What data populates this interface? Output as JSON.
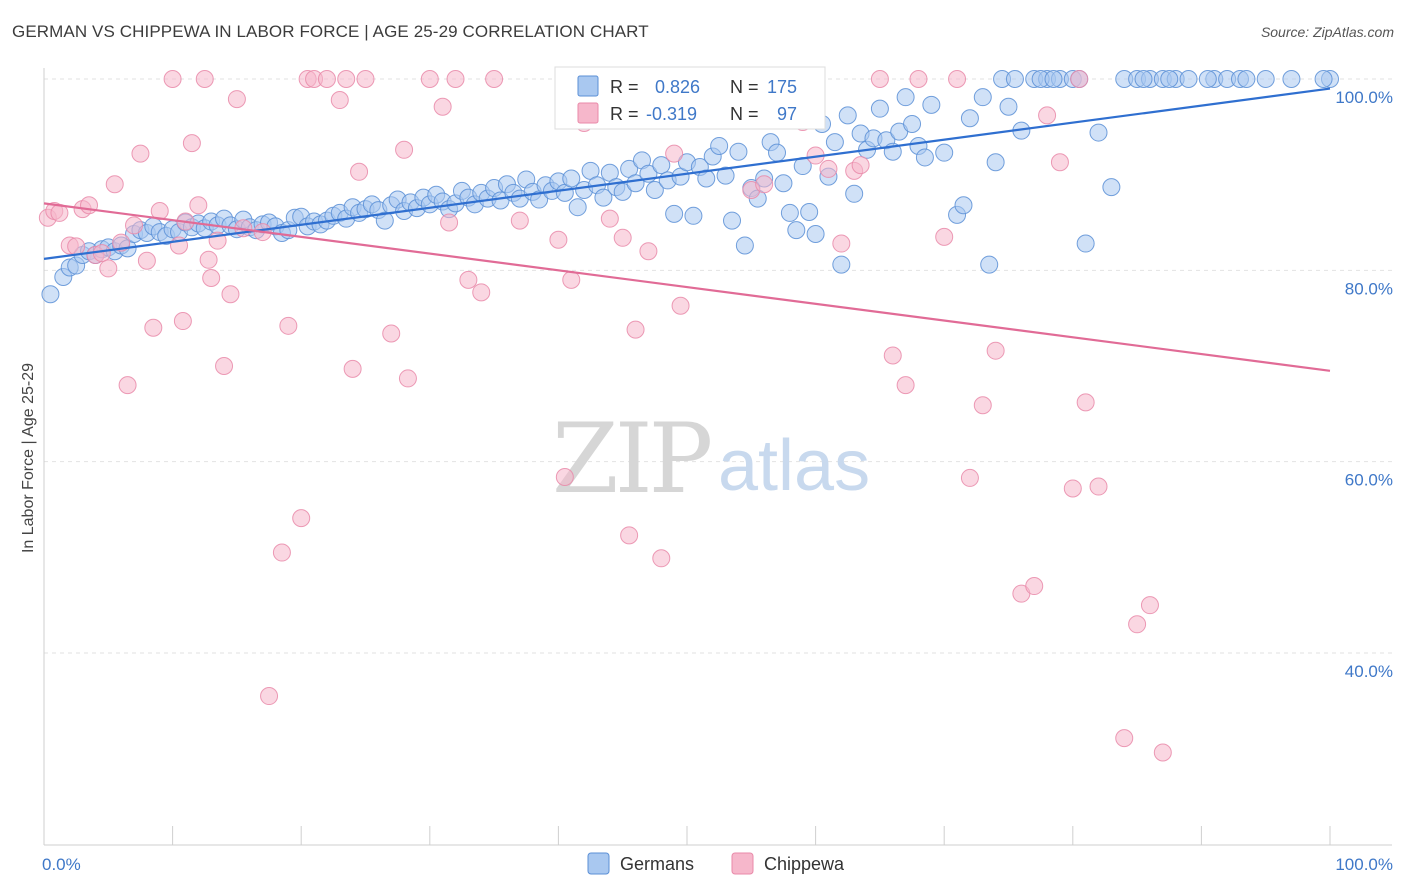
{
  "title": "GERMAN VS CHIPPEWA IN LABOR FORCE | AGE 25-29 CORRELATION CHART",
  "source": "Source: ZipAtlas.com",
  "watermark": {
    "zip": "ZIP",
    "atlas": "atlas"
  },
  "legend": {
    "r_label": "R =",
    "n_label": "N =",
    "rows": [
      {
        "r": "0.826",
        "n": "175",
        "color": "#a9c8f0"
      },
      {
        "r": "-0.319",
        "n": "97",
        "color": "#f6b7cb"
      }
    ]
  },
  "chart_data": {
    "type": "scatter",
    "title": "GERMAN VS CHIPPEWA IN LABOR FORCE | AGE 25-29 CORRELATION CHART",
    "xlabel": "",
    "ylabel": "In Labor Force | Age 25-29",
    "xlim": [
      0,
      100
    ],
    "ylim": [
      20,
      102
    ],
    "x_tick_labels": [
      "0.0%",
      "100.0%"
    ],
    "y_ticks": [
      40,
      60,
      80,
      100
    ],
    "y_tick_labels": [
      "40.0%",
      "60.0%",
      "80.0%",
      "100.0%"
    ],
    "grid": true,
    "legend_position": "top-center",
    "series": [
      {
        "name": "Germans",
        "color": "#a9c8f0",
        "stroke": "#5b8fd6",
        "trend": {
          "x": [
            0,
            100
          ],
          "y": [
            81.2,
            99.0
          ],
          "color": "#2f6fd0"
        },
        "points": [
          [
            0.5,
            77.5
          ],
          [
            1.5,
            79.3
          ],
          [
            2,
            80.3
          ],
          [
            2.5,
            80.5
          ],
          [
            3,
            81.6
          ],
          [
            3.5,
            82.0
          ],
          [
            4,
            81.6
          ],
          [
            4.5,
            82.2
          ],
          [
            5,
            82.4
          ],
          [
            5.5,
            82.0
          ],
          [
            6,
            82.6
          ],
          [
            6.5,
            82.3
          ],
          [
            7,
            83.8
          ],
          [
            7.5,
            84.2
          ],
          [
            8,
            83.9
          ],
          [
            8.5,
            84.6
          ],
          [
            9,
            84.0
          ],
          [
            9.5,
            83.6
          ],
          [
            10,
            84.3
          ],
          [
            10.5,
            84.0
          ],
          [
            11,
            85.0
          ],
          [
            11.5,
            84.5
          ],
          [
            12,
            84.9
          ],
          [
            12.5,
            84.4
          ],
          [
            13,
            85.1
          ],
          [
            13.5,
            84.7
          ],
          [
            14,
            85.4
          ],
          [
            14.5,
            84.7
          ],
          [
            15,
            84.3
          ],
          [
            15.5,
            85.3
          ],
          [
            16,
            84.5
          ],
          [
            16.5,
            84.2
          ],
          [
            17,
            84.8
          ],
          [
            17.5,
            85.0
          ],
          [
            18,
            84.6
          ],
          [
            18.5,
            83.9
          ],
          [
            19,
            84.2
          ],
          [
            19.5,
            85.5
          ],
          [
            20,
            85.6
          ],
          [
            20.5,
            84.6
          ],
          [
            21,
            85.1
          ],
          [
            21.5,
            84.8
          ],
          [
            22,
            85.2
          ],
          [
            22.5,
            85.7
          ],
          [
            23,
            86.0
          ],
          [
            23.5,
            85.4
          ],
          [
            24,
            86.6
          ],
          [
            24.5,
            86.0
          ],
          [
            25,
            86.4
          ],
          [
            25.5,
            86.9
          ],
          [
            26,
            86.3
          ],
          [
            26.5,
            85.2
          ],
          [
            27,
            86.8
          ],
          [
            27.5,
            87.4
          ],
          [
            28,
            86.2
          ],
          [
            28.5,
            87.1
          ],
          [
            29,
            86.5
          ],
          [
            29.5,
            87.6
          ],
          [
            30,
            86.9
          ],
          [
            30.5,
            87.9
          ],
          [
            31,
            87.2
          ],
          [
            31.5,
            86.4
          ],
          [
            32,
            87.0
          ],
          [
            32.5,
            88.3
          ],
          [
            33,
            87.6
          ],
          [
            33.5,
            86.9
          ],
          [
            34,
            88.1
          ],
          [
            34.5,
            87.5
          ],
          [
            35,
            88.6
          ],
          [
            35.5,
            87.3
          ],
          [
            36,
            89.0
          ],
          [
            36.5,
            88.1
          ],
          [
            37,
            87.5
          ],
          [
            37.5,
            89.5
          ],
          [
            38,
            88.2
          ],
          [
            38.5,
            87.4
          ],
          [
            39,
            88.9
          ],
          [
            39.5,
            88.3
          ],
          [
            40,
            89.3
          ],
          [
            40.5,
            88.1
          ],
          [
            41,
            89.6
          ],
          [
            41.5,
            86.6
          ],
          [
            42,
            88.4
          ],
          [
            42.5,
            90.4
          ],
          [
            43,
            88.9
          ],
          [
            43.5,
            87.6
          ],
          [
            44,
            90.2
          ],
          [
            44.5,
            88.7
          ],
          [
            45,
            88.2
          ],
          [
            45.5,
            90.6
          ],
          [
            46,
            89.1
          ],
          [
            46.5,
            91.5
          ],
          [
            47,
            90.1
          ],
          [
            47.5,
            88.4
          ],
          [
            48,
            91.0
          ],
          [
            48.5,
            89.4
          ],
          [
            49,
            85.9
          ],
          [
            49.5,
            89.8
          ],
          [
            50,
            91.3
          ],
          [
            50.5,
            85.7
          ],
          [
            51,
            90.8
          ],
          [
            51.5,
            89.6
          ],
          [
            52,
            91.9
          ],
          [
            52.5,
            93.0
          ],
          [
            53,
            89.9
          ],
          [
            53.5,
            85.2
          ],
          [
            54,
            92.4
          ],
          [
            54.5,
            82.6
          ],
          [
            55,
            88.6
          ],
          [
            55.5,
            87.5
          ],
          [
            56,
            89.6
          ],
          [
            56.5,
            93.4
          ],
          [
            57,
            92.3
          ],
          [
            57.5,
            89.1
          ],
          [
            58,
            86.0
          ],
          [
            58.5,
            84.2
          ],
          [
            59,
            90.9
          ],
          [
            59.5,
            86.1
          ],
          [
            60,
            83.8
          ],
          [
            60.5,
            95.3
          ],
          [
            61,
            89.8
          ],
          [
            61.5,
            93.4
          ],
          [
            62,
            80.6
          ],
          [
            62.5,
            96.2
          ],
          [
            63,
            88.0
          ],
          [
            63.5,
            94.3
          ],
          [
            64,
            92.6
          ],
          [
            64.5,
            93.8
          ],
          [
            65,
            96.9
          ],
          [
            65.5,
            93.6
          ],
          [
            66,
            92.4
          ],
          [
            66.5,
            94.5
          ],
          [
            67,
            98.1
          ],
          [
            67.5,
            95.3
          ],
          [
            68,
            93.0
          ],
          [
            68.5,
            91.8
          ],
          [
            69,
            97.3
          ],
          [
            70,
            92.3
          ],
          [
            71,
            85.8
          ],
          [
            71.5,
            86.8
          ],
          [
            72,
            95.9
          ],
          [
            73,
            98.1
          ],
          [
            73.5,
            80.6
          ],
          [
            74,
            91.3
          ],
          [
            75,
            97.1
          ],
          [
            76,
            94.6
          ],
          [
            77,
            100
          ],
          [
            78,
            100
          ],
          [
            79,
            100
          ],
          [
            80,
            100
          ],
          [
            81,
            82.8
          ],
          [
            82,
            94.4
          ],
          [
            83,
            88.7
          ],
          [
            84,
            100
          ],
          [
            85,
            100
          ],
          [
            86,
            100
          ],
          [
            87,
            100
          ],
          [
            88,
            100
          ],
          [
            89,
            100
          ],
          [
            91,
            100
          ],
          [
            92,
            100
          ],
          [
            93,
            100
          ],
          [
            95,
            100
          ],
          [
            97,
            100
          ],
          [
            100,
            100
          ],
          [
            74.5,
            100
          ],
          [
            75.5,
            100
          ],
          [
            77.5,
            100
          ],
          [
            78.5,
            100
          ],
          [
            80.5,
            100
          ],
          [
            85.5,
            100
          ],
          [
            87.5,
            100
          ],
          [
            90.5,
            100
          ],
          [
            93.5,
            100
          ],
          [
            99.5,
            100
          ]
        ]
      },
      {
        "name": "Chippewa",
        "color": "#f6b7cb",
        "stroke": "#e98aa9",
        "trend": {
          "x": [
            0,
            100
          ],
          "y": [
            87.0,
            69.5
          ],
          "color": "#e16b96"
        },
        "points": [
          [
            0.3,
            85.5
          ],
          [
            0.8,
            86.2
          ],
          [
            1.2,
            86.0
          ],
          [
            2,
            82.6
          ],
          [
            2.5,
            82.5
          ],
          [
            3,
            86.4
          ],
          [
            3.5,
            86.8
          ],
          [
            4,
            81.6
          ],
          [
            4.5,
            81.8
          ],
          [
            5,
            80.2
          ],
          [
            5.5,
            89.0
          ],
          [
            6,
            82.9
          ],
          [
            6.5,
            68.0
          ],
          [
            7,
            84.7
          ],
          [
            7.5,
            92.2
          ],
          [
            8,
            81.0
          ],
          [
            8.5,
            74.0
          ],
          [
            9,
            86.2
          ],
          [
            10,
            100
          ],
          [
            10.5,
            82.6
          ],
          [
            10.8,
            74.7
          ],
          [
            11,
            85.1
          ],
          [
            11.5,
            93.3
          ],
          [
            12,
            86.8
          ],
          [
            12.5,
            100
          ],
          [
            12.8,
            81.1
          ],
          [
            13,
            79.2
          ],
          [
            13.5,
            83.1
          ],
          [
            14,
            70.0
          ],
          [
            14.5,
            77.5
          ],
          [
            15,
            97.9
          ],
          [
            15.5,
            84.4
          ],
          [
            17,
            84.0
          ],
          [
            17.5,
            35.5
          ],
          [
            18.5,
            50.5
          ],
          [
            19,
            74.2
          ],
          [
            20,
            54.1
          ],
          [
            20.5,
            100
          ],
          [
            21,
            100
          ],
          [
            22,
            100
          ],
          [
            23,
            97.8
          ],
          [
            23.5,
            100
          ],
          [
            24,
            69.7
          ],
          [
            24.5,
            90.3
          ],
          [
            25,
            100
          ],
          [
            27,
            73.4
          ],
          [
            28,
            92.6
          ],
          [
            28.3,
            68.7
          ],
          [
            30,
            100
          ],
          [
            31,
            97.1
          ],
          [
            31.5,
            85.0
          ],
          [
            32,
            100
          ],
          [
            33,
            79.0
          ],
          [
            34,
            77.7
          ],
          [
            35,
            100
          ],
          [
            37,
            85.2
          ],
          [
            40,
            83.2
          ],
          [
            40.5,
            58.4
          ],
          [
            41,
            79.0
          ],
          [
            42,
            95.4
          ],
          [
            44,
            85.4
          ],
          [
            45,
            83.4
          ],
          [
            45.5,
            52.3
          ],
          [
            46,
            73.8
          ],
          [
            47,
            82.0
          ],
          [
            48,
            49.9
          ],
          [
            49,
            92.2
          ],
          [
            49.5,
            76.3
          ],
          [
            55,
            88.4
          ],
          [
            56,
            89.0
          ],
          [
            59,
            95.5
          ],
          [
            60,
            92.0
          ],
          [
            61,
            90.6
          ],
          [
            62,
            82.8
          ],
          [
            63,
            90.4
          ],
          [
            63.5,
            91.0
          ],
          [
            65,
            100
          ],
          [
            66,
            71.1
          ],
          [
            67,
            68.0
          ],
          [
            68,
            100
          ],
          [
            70,
            83.5
          ],
          [
            71,
            100
          ],
          [
            72,
            58.3
          ],
          [
            73,
            65.9
          ],
          [
            74,
            71.6
          ],
          [
            76,
            46.2
          ],
          [
            77,
            47.0
          ],
          [
            78,
            96.2
          ],
          [
            79,
            91.3
          ],
          [
            80,
            57.2
          ],
          [
            80.5,
            100
          ],
          [
            81,
            66.2
          ],
          [
            82,
            57.4
          ],
          [
            84,
            31.1
          ],
          [
            85,
            43.0
          ],
          [
            86,
            45.0
          ],
          [
            87,
            29.6
          ]
        ]
      }
    ]
  },
  "bottom_legend": [
    {
      "label": "Germans",
      "color": "#a9c8f0",
      "stroke": "#5b8fd6"
    },
    {
      "label": "Chippewa",
      "color": "#f6b7cb",
      "stroke": "#e98aa9"
    }
  ]
}
